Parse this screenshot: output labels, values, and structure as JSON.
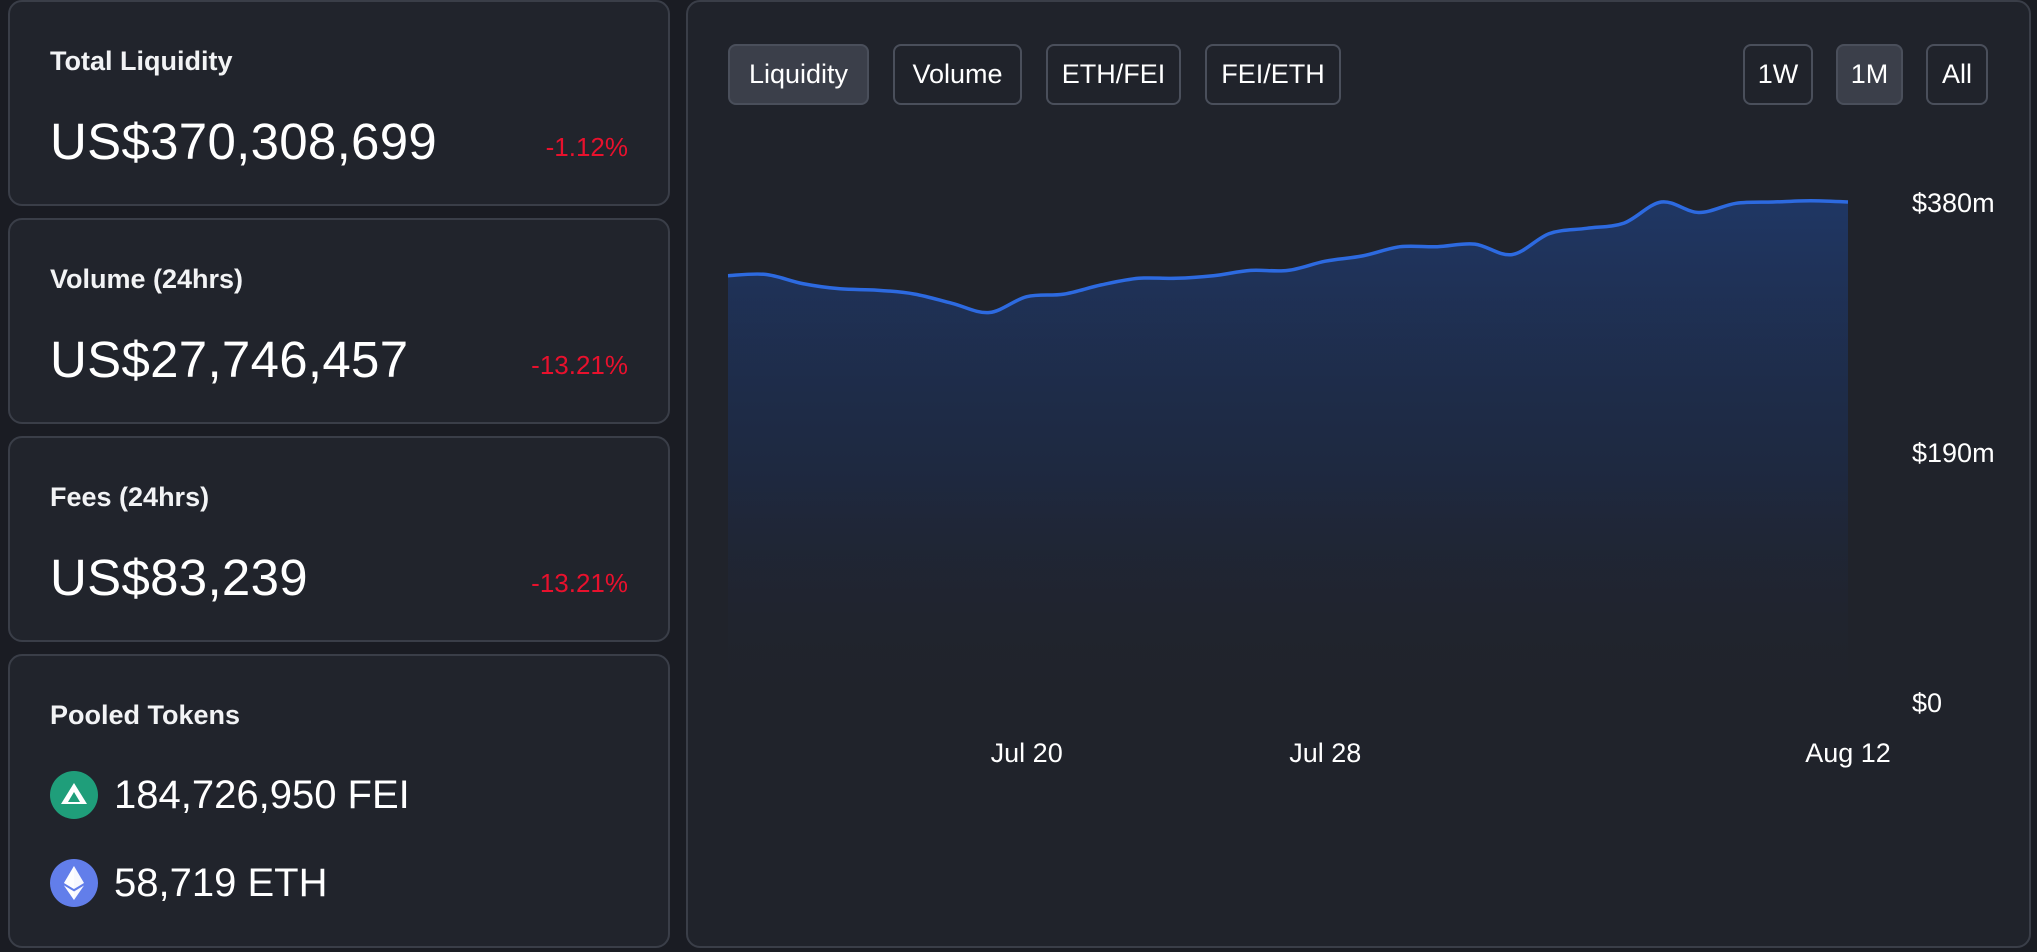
{
  "stats": {
    "liquidity": {
      "title": "Total Liquidity",
      "value": "US$370,308,699",
      "change": "-1.12%"
    },
    "volume": {
      "title": "Volume (24hrs)",
      "value": "US$27,746,457",
      "change": "-13.21%"
    },
    "fees": {
      "title": "Fees (24hrs)",
      "value": "US$83,239",
      "change": "-13.21%"
    }
  },
  "pooled": {
    "title": "Pooled Tokens",
    "tokens": [
      {
        "amount": "184,726,950 FEI",
        "icon": "fei-token-icon",
        "color": "#1f9e7a"
      },
      {
        "amount": "58,719 ETH",
        "icon": "eth-token-icon",
        "color": "#627eea"
      }
    ]
  },
  "chart_tabs": [
    "Liquidity",
    "Volume",
    "ETH/FEI",
    "FEI/ETH"
  ],
  "active_tab": "Liquidity",
  "range_tabs": [
    "1W",
    "1M",
    "All"
  ],
  "active_range": "1M",
  "colors": {
    "negative": "#e8112d",
    "line": "#2d6ae0",
    "panel": "#20232b"
  },
  "chart_data": {
    "type": "area",
    "series": [
      {
        "values": [
          324,
          325,
          318,
          314,
          313,
          310,
          303,
          296,
          308,
          310,
          317,
          322,
          322,
          324,
          328,
          328,
          335,
          339,
          346,
          346,
          348,
          340,
          356,
          360,
          364,
          380,
          372,
          379,
          380,
          381,
          380
        ]
      }
    ],
    "y_ticks": [
      "$380m",
      "$190m",
      "$0"
    ],
    "y_tick_values": [
      380,
      190,
      0
    ],
    "x_ticks": [
      "Jul 20",
      "Jul 28",
      "Aug 12"
    ],
    "x_tick_index": [
      8,
      16,
      30
    ],
    "ylim": [
      0,
      380
    ],
    "y_unit": "US$ millions",
    "grid": false
  }
}
